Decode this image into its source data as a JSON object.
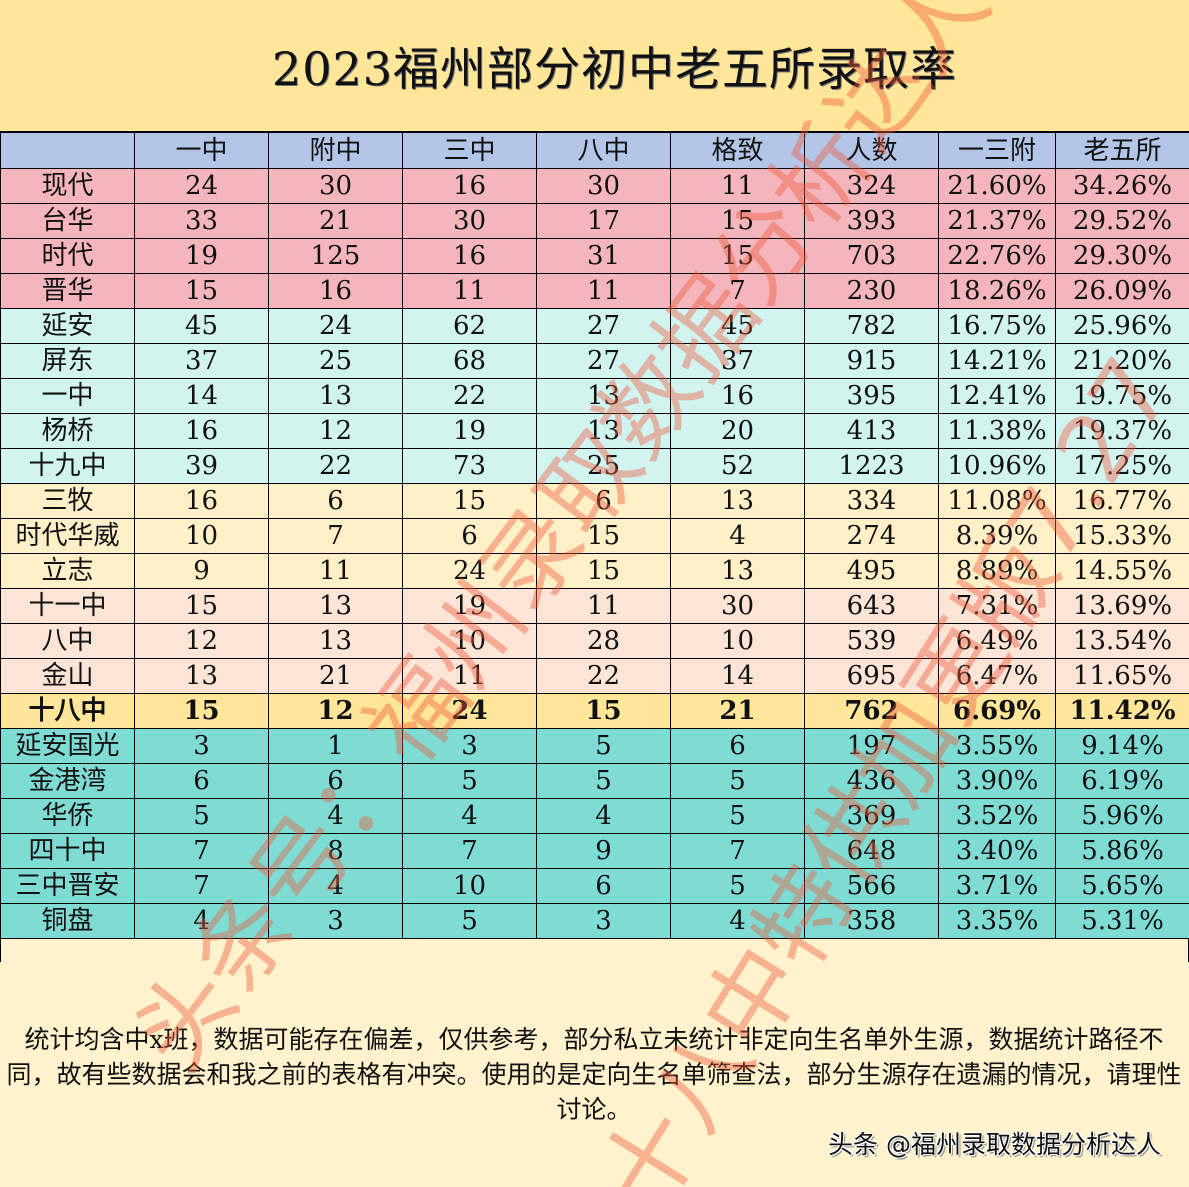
{
  "title": "2023福州部分初中老五所录取率",
  "table": {
    "columns": [
      "",
      "一中",
      "附中",
      "三中",
      "八中",
      "格致",
      "人数",
      "一三附",
      "老五所"
    ],
    "groups": {
      "pink": "#f4b5bd",
      "cyan": "#d2f4f1",
      "cream": "#fff0c8",
      "peach": "#fce4d6",
      "gold": "#ffe699",
      "teal": "#7fdcd4"
    },
    "rows": [
      {
        "school": "现代",
        "yizhong": "24",
        "fuzhong": "30",
        "sanzhong": "16",
        "bazhong": "30",
        "gezhi": "11",
        "count": "324",
        "yisanfu": "21.60%",
        "laowusuo": "34.26%"
      },
      {
        "school": "台华",
        "yizhong": "33",
        "fuzhong": "21",
        "sanzhong": "30",
        "bazhong": "17",
        "gezhi": "15",
        "count": "393",
        "yisanfu": "21.37%",
        "laowusuo": "29.52%"
      },
      {
        "school": "时代",
        "yizhong": "19",
        "fuzhong": "125",
        "sanzhong": "16",
        "bazhong": "31",
        "gezhi": "15",
        "count": "703",
        "yisanfu": "22.76%",
        "laowusuo": "29.30%"
      },
      {
        "school": "晋华",
        "yizhong": "15",
        "fuzhong": "16",
        "sanzhong": "11",
        "bazhong": "11",
        "gezhi": "7",
        "count": "230",
        "yisanfu": "18.26%",
        "laowusuo": "26.09%"
      },
      {
        "school": "延安",
        "yizhong": "45",
        "fuzhong": "24",
        "sanzhong": "62",
        "bazhong": "27",
        "gezhi": "45",
        "count": "782",
        "yisanfu": "16.75%",
        "laowusuo": "25.96%"
      },
      {
        "school": "屏东",
        "yizhong": "37",
        "fuzhong": "25",
        "sanzhong": "68",
        "bazhong": "27",
        "gezhi": "37",
        "count": "915",
        "yisanfu": "14.21%",
        "laowusuo": "21.20%"
      },
      {
        "school": "一中",
        "yizhong": "14",
        "fuzhong": "13",
        "sanzhong": "22",
        "bazhong": "13",
        "gezhi": "16",
        "count": "395",
        "yisanfu": "12.41%",
        "laowusuo": "19.75%"
      },
      {
        "school": "杨桥",
        "yizhong": "16",
        "fuzhong": "12",
        "sanzhong": "19",
        "bazhong": "13",
        "gezhi": "20",
        "count": "413",
        "yisanfu": "11.38%",
        "laowusuo": "19.37%"
      },
      {
        "school": "十九中",
        "yizhong": "39",
        "fuzhong": "22",
        "sanzhong": "73",
        "bazhong": "25",
        "gezhi": "52",
        "count": "1223",
        "yisanfu": "10.96%",
        "laowusuo": "17.25%"
      },
      {
        "school": "三牧",
        "yizhong": "16",
        "fuzhong": "6",
        "sanzhong": "15",
        "bazhong": "6",
        "gezhi": "13",
        "count": "334",
        "yisanfu": "11.08%",
        "laowusuo": "16.77%"
      },
      {
        "school": "时代华威",
        "yizhong": "10",
        "fuzhong": "7",
        "sanzhong": "6",
        "bazhong": "15",
        "gezhi": "4",
        "count": "274",
        "yisanfu": "8.39%",
        "laowusuo": "15.33%"
      },
      {
        "school": "立志",
        "yizhong": "9",
        "fuzhong": "11",
        "sanzhong": "24",
        "bazhong": "15",
        "gezhi": "13",
        "count": "495",
        "yisanfu": "8.89%",
        "laowusuo": "14.55%"
      },
      {
        "school": "十一中",
        "yizhong": "15",
        "fuzhong": "13",
        "sanzhong": "19",
        "bazhong": "11",
        "gezhi": "30",
        "count": "643",
        "yisanfu": "7.31%",
        "laowusuo": "13.69%"
      },
      {
        "school": "八中",
        "yizhong": "12",
        "fuzhong": "13",
        "sanzhong": "10",
        "bazhong": "28",
        "gezhi": "10",
        "count": "539",
        "yisanfu": "6.49%",
        "laowusuo": "13.54%"
      },
      {
        "school": "金山",
        "yizhong": "13",
        "fuzhong": "21",
        "sanzhong": "11",
        "bazhong": "22",
        "gezhi": "14",
        "count": "695",
        "yisanfu": "6.47%",
        "laowusuo": "11.65%"
      },
      {
        "school": "十八中",
        "yizhong": "15",
        "fuzhong": "12",
        "sanzhong": "24",
        "bazhong": "15",
        "gezhi": "21",
        "count": "762",
        "yisanfu": "6.69%",
        "laowusuo": "11.42%"
      },
      {
        "school": "延安国光",
        "yizhong": "3",
        "fuzhong": "1",
        "sanzhong": "3",
        "bazhong": "5",
        "gezhi": "6",
        "count": "197",
        "yisanfu": "3.55%",
        "laowusuo": "9.14%"
      },
      {
        "school": "金港湾",
        "yizhong": "6",
        "fuzhong": "6",
        "sanzhong": "5",
        "bazhong": "5",
        "gezhi": "5",
        "count": "436",
        "yisanfu": "3.90%",
        "laowusuo": "6.19%"
      },
      {
        "school": "华侨",
        "yizhong": "5",
        "fuzhong": "4",
        "sanzhong": "4",
        "bazhong": "4",
        "gezhi": "5",
        "count": "369",
        "yisanfu": "3.52%",
        "laowusuo": "5.96%"
      },
      {
        "school": "四十中",
        "yizhong": "7",
        "fuzhong": "8",
        "sanzhong": "7",
        "bazhong": "9",
        "gezhi": "7",
        "count": "648",
        "yisanfu": "3.40%",
        "laowusuo": "5.86%"
      },
      {
        "school": "三中晋安",
        "yizhong": "7",
        "fuzhong": "4",
        "sanzhong": "10",
        "bazhong": "6",
        "gezhi": "5",
        "count": "566",
        "yisanfu": "3.71%",
        "laowusuo": "5.65%"
      },
      {
        "school": "铜盘",
        "yizhong": "4",
        "fuzhong": "3",
        "sanzhong": "5",
        "bazhong": "3",
        "gezhi": "4",
        "count": "358",
        "yisanfu": "3.35%",
        "laowusuo": "5.31%"
      }
    ]
  },
  "footer": {
    "note": "统计均含中x班，数据可能存在偏差，仅供参考，部分私立未统计非定向生名单外生源，数据统计路径不同，故有些数据会和我之前的表格有冲突。使用的是定向生名单筛查法，部分生源存在遗漏的情况，请理性讨论。",
    "credit": "头条 @福州录取数据分析达人"
  },
  "watermark": {
    "line1": "头条号：福州录取数据分析达人",
    "line2": "十八中特供加更版7.27"
  }
}
